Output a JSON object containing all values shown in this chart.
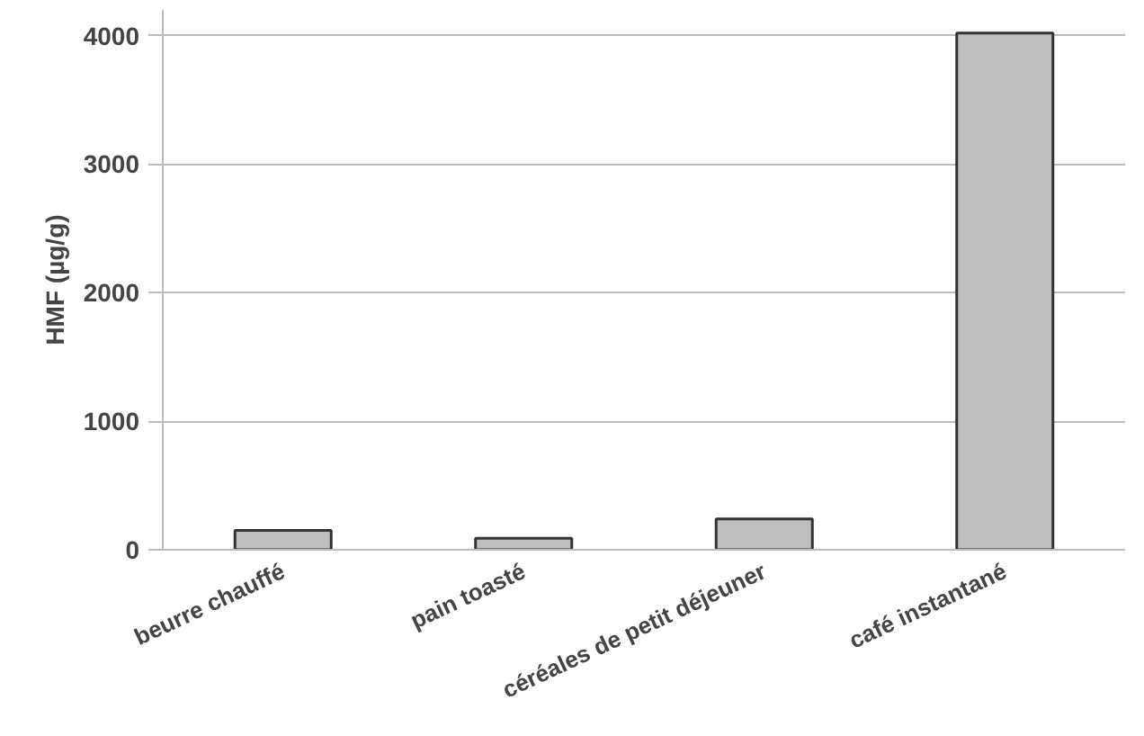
{
  "chart_data": {
    "type": "bar",
    "ylabel": "HMF (µg/g)",
    "categories": [
      "beurre chauffé",
      "pain toasté",
      "céréales de petit déjeuner",
      "café instantané"
    ],
    "values": [
      150,
      90,
      240,
      4020
    ],
    "color": "#bfbfbf",
    "ylim": [
      0,
      4200
    ],
    "yticks": [
      0,
      1000,
      2000,
      3000,
      4000
    ],
    "grid": "y"
  }
}
